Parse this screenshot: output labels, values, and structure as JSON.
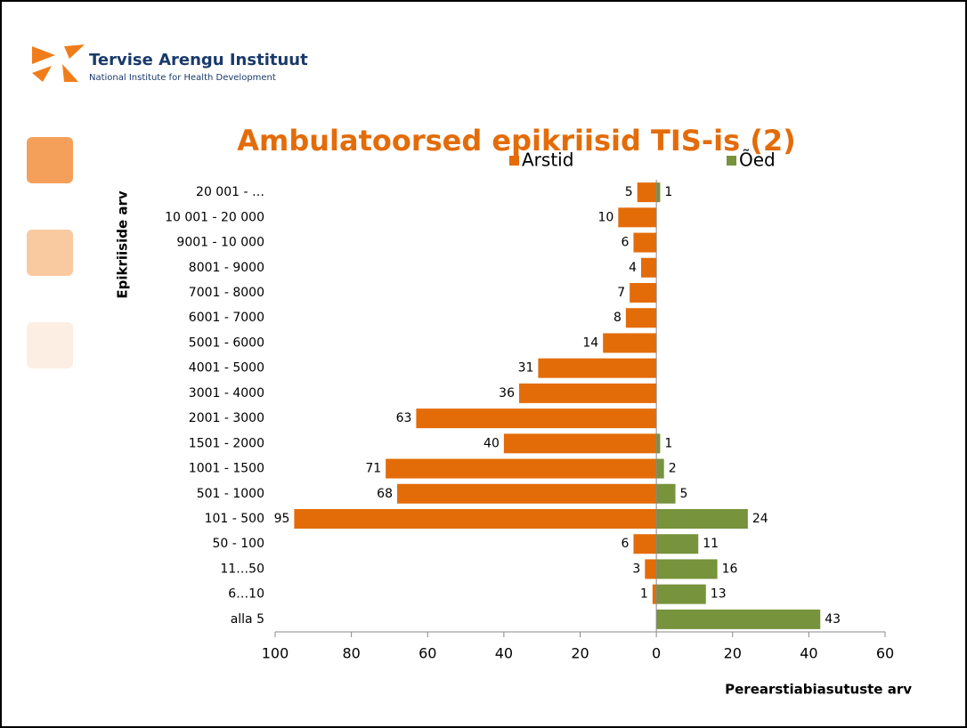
{
  "header": {
    "org": "Tervise Arengu Instituut",
    "org_subtitle": "National Institute for Health Development"
  },
  "chart_data": {
    "type": "diverging-bar",
    "title": "Ambulatoorsed epikriisid TIS-is (2)",
    "y_label": "Epikriiside arv",
    "x_label": "Perearstiabiasutuste arv",
    "categories": [
      "20 001 - …",
      "10 001 - 20 000",
      "9001 - 10 000",
      "8001 - 9000",
      "7001 - 8000",
      "6001 - 7000",
      "5001 - 6000",
      "4001 - 5000",
      "3001 - 4000",
      "2001 - 3000",
      "1501 - 2000",
      "1001 - 1500",
      "501 - 1000",
      "101 - 500",
      "50 - 100",
      "11…50",
      "6…10",
      "alla 5"
    ],
    "series": [
      {
        "name": "Arstid",
        "color": "#e36c09",
        "values": [
          -5,
          -10,
          -6,
          -4,
          -7,
          -8,
          -14,
          -31,
          -36,
          -63,
          -40,
          -71,
          -68,
          -95,
          -6,
          -3,
          -1,
          null
        ],
        "value_labels": [
          "5",
          "10",
          "6",
          "4",
          "7",
          "8",
          "14",
          "31",
          "36",
          "63",
          "40",
          "71",
          "68",
          "95",
          "6",
          "3",
          "1",
          null
        ]
      },
      {
        "name": "Õed",
        "color": "#77933c",
        "values": [
          1,
          null,
          null,
          null,
          null,
          null,
          null,
          null,
          null,
          null,
          1,
          2,
          5,
          24,
          11,
          16,
          13,
          43
        ]
      }
    ],
    "xlim": [
      -100,
      60
    ],
    "xticks": [
      {
        "value": -100,
        "label": "100"
      },
      {
        "value": -80,
        "label": "80"
      },
      {
        "value": -60,
        "label": "60"
      },
      {
        "value": -40,
        "label": "40"
      },
      {
        "value": -20,
        "label": "20"
      },
      0,
      20,
      40,
      60
    ],
    "legend": "top"
  }
}
